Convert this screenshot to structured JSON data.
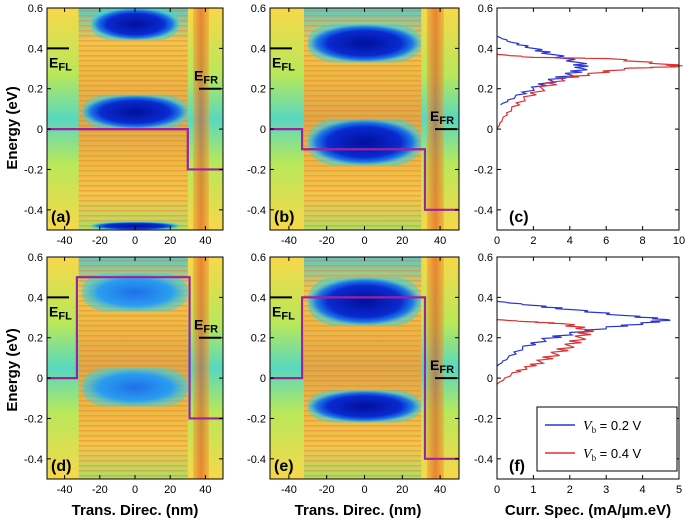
{
  "y_axis_label": "Energy (eV)",
  "x_axis_label_maps": "Trans. Direc. (nm)",
  "x_axis_label_spectra": "Curr. Spec. (mA/µm.eV)",
  "legend": [
    {
      "sym": "V",
      "sub": "b",
      "text": " = 0.2 V",
      "color": "#2b35d8"
    },
    {
      "sym": "V",
      "sub": "b",
      "text": " = 0.4 V",
      "color": "#e03030"
    }
  ],
  "ef_left": {
    "main": "E",
    "sub": "FL"
  },
  "ef_right": {
    "main": "E",
    "sub": "FR"
  },
  "colors": {
    "band_line": "#a020a0",
    "blue_series": "#2b35d8",
    "red_series": "#e03030"
  },
  "chart_data": [
    {
      "type": "heatmap",
      "panel": "(a)",
      "xlim": [
        -50,
        50
      ],
      "ylim": [
        -0.5,
        0.6
      ],
      "xticks": [
        "-40",
        "-20",
        "0",
        "20",
        "40"
      ],
      "yticks": [
        "-0.4",
        "-0.2",
        "0",
        "0.2",
        "0.4",
        "0.6"
      ],
      "ef_left": 0.4,
      "ef_right": 0.2,
      "band_profile": [
        [
          -50,
          0
        ],
        [
          30,
          0
        ],
        [
          30,
          -0.2
        ],
        [
          50,
          -0.2
        ]
      ],
      "dark_regions": [
        {
          "x": [
            -25,
            25
          ],
          "y": [
            0.44,
            0.6
          ]
        },
        {
          "x": [
            -30,
            30
          ],
          "y": [
            0.0,
            0.17
          ]
        },
        {
          "x": [
            -25,
            25
          ],
          "y": [
            -0.5,
            -0.46
          ]
        }
      ]
    },
    {
      "type": "heatmap",
      "panel": "(b)",
      "xlim": [
        -50,
        50
      ],
      "ylim": [
        -0.5,
        0.6
      ],
      "xticks": [
        "-40",
        "-20",
        "0",
        "20",
        "40"
      ],
      "yticks": [
        "-0.4",
        "-0.2",
        "0",
        "0.2",
        "0.4",
        "0.6"
      ],
      "ef_left": 0.4,
      "ef_right": 0.0,
      "band_profile": [
        [
          -50,
          0
        ],
        [
          -33,
          0
        ],
        [
          -33,
          -0.1
        ],
        [
          32,
          -0.1
        ],
        [
          32,
          -0.4
        ],
        [
          50,
          -0.4
        ]
      ],
      "dark_regions": [
        {
          "x": [
            -30,
            30
          ],
          "y": [
            0.33,
            0.52
          ]
        },
        {
          "x": [
            -30,
            30
          ],
          "y": [
            -0.18,
            0.05
          ]
        }
      ]
    },
    {
      "type": "line",
      "panel": "(c)",
      "xlim": [
        0,
        10
      ],
      "ylim": [
        -0.5,
        0.6
      ],
      "xticks": [
        "0",
        "2",
        "4",
        "6",
        "8",
        "10"
      ],
      "yticks": [
        "-0.4",
        "-0.2",
        "0",
        "0.2",
        "0.4",
        "0.6"
      ],
      "series": [
        {
          "color": "blue",
          "points": [
            [
              0,
              0.46
            ],
            [
              0.8,
              0.43
            ],
            [
              2,
              0.4
            ],
            [
              3,
              0.37
            ],
            [
              4.5,
              0.33
            ],
            [
              4.7,
              0.3
            ],
            [
              4,
              0.27
            ],
            [
              3,
              0.24
            ],
            [
              2,
              0.2
            ],
            [
              1,
              0.16
            ],
            [
              0.2,
              0.12
            ]
          ]
        },
        {
          "color": "red",
          "points": [
            [
              0,
              0.37
            ],
            [
              2,
              0.355
            ],
            [
              6,
              0.35
            ],
            [
              9.5,
              0.32
            ],
            [
              10,
              0.31
            ],
            [
              7,
              0.3
            ],
            [
              5,
              0.27
            ],
            [
              3.5,
              0.25
            ],
            [
              2.5,
              0.2
            ],
            [
              1.5,
              0.15
            ],
            [
              0.8,
              0.1
            ],
            [
              0.3,
              0.05
            ],
            [
              0,
              0.0
            ]
          ]
        }
      ]
    },
    {
      "type": "heatmap",
      "panel": "(d)",
      "xlim": [
        -50,
        50
      ],
      "ylim": [
        -0.5,
        0.6
      ],
      "xticks": [
        "-40",
        "-20",
        "0",
        "20",
        "40"
      ],
      "yticks": [
        "-0.4",
        "-0.2",
        "0",
        "0.2",
        "0.4",
        "0.6"
      ],
      "ef_left": 0.4,
      "ef_right": 0.2,
      "band_profile": [
        [
          -50,
          0
        ],
        [
          -33,
          0
        ],
        [
          -33,
          0.5
        ],
        [
          31,
          0.5
        ],
        [
          31,
          -0.2
        ],
        [
          50,
          -0.2
        ]
      ],
      "dark_regions": [
        {
          "x": [
            -30,
            30
          ],
          "y": [
            0.33,
            0.52
          ]
        },
        {
          "x": [
            -30,
            30
          ],
          "y": [
            -0.14,
            0.05
          ]
        }
      ]
    },
    {
      "type": "heatmap",
      "panel": "(e)",
      "xlim": [
        -50,
        50
      ],
      "ylim": [
        -0.5,
        0.6
      ],
      "xticks": [
        "-40",
        "-20",
        "0",
        "20",
        "40"
      ],
      "yticks": [
        "-0.4",
        "-0.2",
        "0",
        "0.2",
        "0.4",
        "0.6"
      ],
      "ef_left": 0.4,
      "ef_right": 0.0,
      "band_profile": [
        [
          -50,
          0
        ],
        [
          -33,
          0
        ],
        [
          -33,
          0.4
        ],
        [
          32,
          0.4
        ],
        [
          32,
          -0.4
        ],
        [
          50,
          -0.4
        ]
      ],
      "dark_regions": [
        {
          "x": [
            -30,
            30
          ],
          "y": [
            0.26,
            0.5
          ]
        },
        {
          "x": [
            -30,
            30
          ],
          "y": [
            -0.22,
            -0.06
          ]
        }
      ]
    },
    {
      "type": "line",
      "panel": "(f)",
      "xlim": [
        0,
        5
      ],
      "ylim": [
        -0.5,
        0.6
      ],
      "xticks": [
        "0",
        "1",
        "2",
        "3",
        "4",
        "5"
      ],
      "yticks": [
        "-0.4",
        "-0.2",
        "0",
        "0.2",
        "0.4",
        "0.6"
      ],
      "series": [
        {
          "color": "blue",
          "points": [
            [
              0,
              0.38
            ],
            [
              1,
              0.36
            ],
            [
              2,
              0.34
            ],
            [
              3.5,
              0.31
            ],
            [
              4.7,
              0.29
            ],
            [
              4,
              0.27
            ],
            [
              3,
              0.25
            ],
            [
              2,
              0.22
            ],
            [
              1.3,
              0.19
            ],
            [
              0.7,
              0.15
            ],
            [
              0.3,
              0.1
            ],
            [
              0,
              0.06
            ]
          ]
        },
        {
          "color": "red",
          "points": [
            [
              0,
              0.29
            ],
            [
              0.8,
              0.28
            ],
            [
              1.8,
              0.27
            ],
            [
              2.5,
              0.24
            ],
            [
              2.3,
              0.2
            ],
            [
              2.0,
              0.16
            ],
            [
              1.6,
              0.12
            ],
            [
              1.2,
              0.08
            ],
            [
              0.8,
              0.05
            ],
            [
              0.4,
              0.02
            ],
            [
              0,
              -0.03
            ]
          ]
        }
      ]
    }
  ]
}
